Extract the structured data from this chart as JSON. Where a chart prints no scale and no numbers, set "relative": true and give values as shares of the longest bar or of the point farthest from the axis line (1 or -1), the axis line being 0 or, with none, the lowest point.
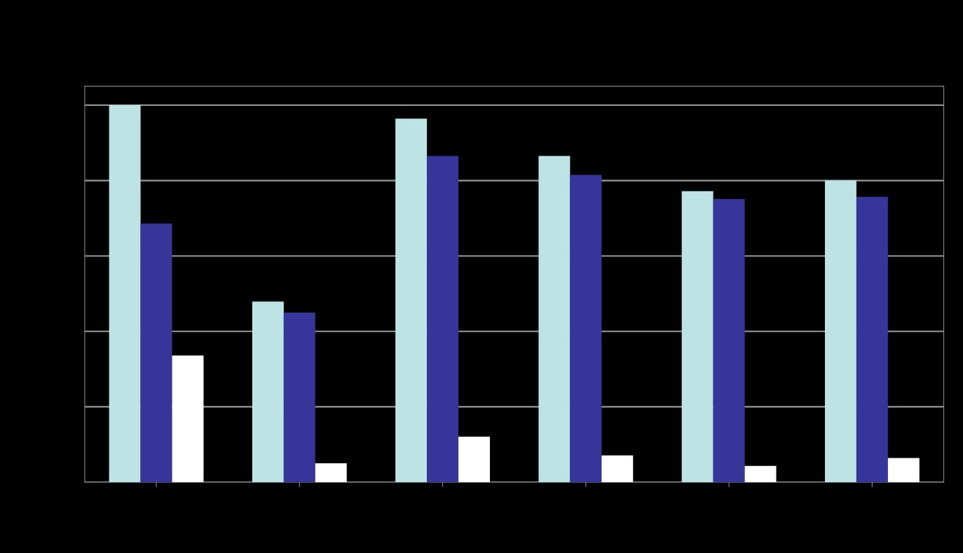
{
  "chart_data": {
    "type": "bar",
    "relative": true,
    "grid": "y",
    "categories": [
      null,
      null,
      null,
      null,
      null,
      null
    ],
    "series": [
      {
        "color": "#bde3e4",
        "values": [
          1,
          0.479,
          0.964,
          0.865,
          0.772,
          0.8
        ]
      },
      {
        "color": "#36359a",
        "values": [
          0.686,
          0.45,
          0.865,
          0.815,
          0.751,
          0.757
        ]
      },
      {
        "color": "#ffffff",
        "values": [
          0.336,
          0.05,
          0.121,
          0.071,
          0.043,
          0.064
        ]
      }
    ]
  }
}
